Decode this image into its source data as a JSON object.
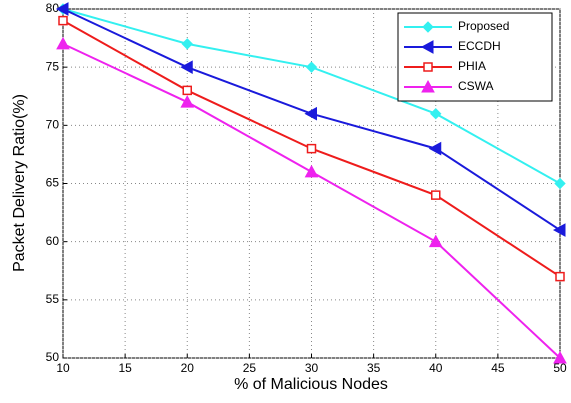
{
  "chart_data": {
    "type": "line",
    "x_label": "% of Malicious Nodes",
    "y_label": "Packet Delivery Ratio(%)",
    "x": [
      10,
      20,
      30,
      40,
      50
    ],
    "series": [
      {
        "name": "Proposed",
        "color": "#33f0f0",
        "marker": "diamond",
        "values": [
          80,
          77,
          75,
          71,
          65
        ]
      },
      {
        "name": "ECCDH",
        "color": "#1a1adb",
        "marker": "triangle-left",
        "values": [
          80,
          75,
          71,
          68,
          61
        ]
      },
      {
        "name": "PHIA",
        "color": "#ee1c1c",
        "marker": "square",
        "values": [
          79,
          73,
          68,
          64,
          57
        ]
      },
      {
        "name": "CSWA",
        "color": "#ee22ee",
        "marker": "triangle-up",
        "values": [
          77,
          72,
          66,
          60,
          50
        ]
      }
    ],
    "xlim": [
      10,
      50
    ],
    "xticks": [
      10,
      15,
      20,
      25,
      30,
      35,
      40,
      45,
      50
    ],
    "ylim": [
      50,
      80
    ],
    "yticks": [
      50,
      55,
      60,
      65,
      70,
      75,
      80
    ],
    "grid": true,
    "legend": "top-right"
  }
}
